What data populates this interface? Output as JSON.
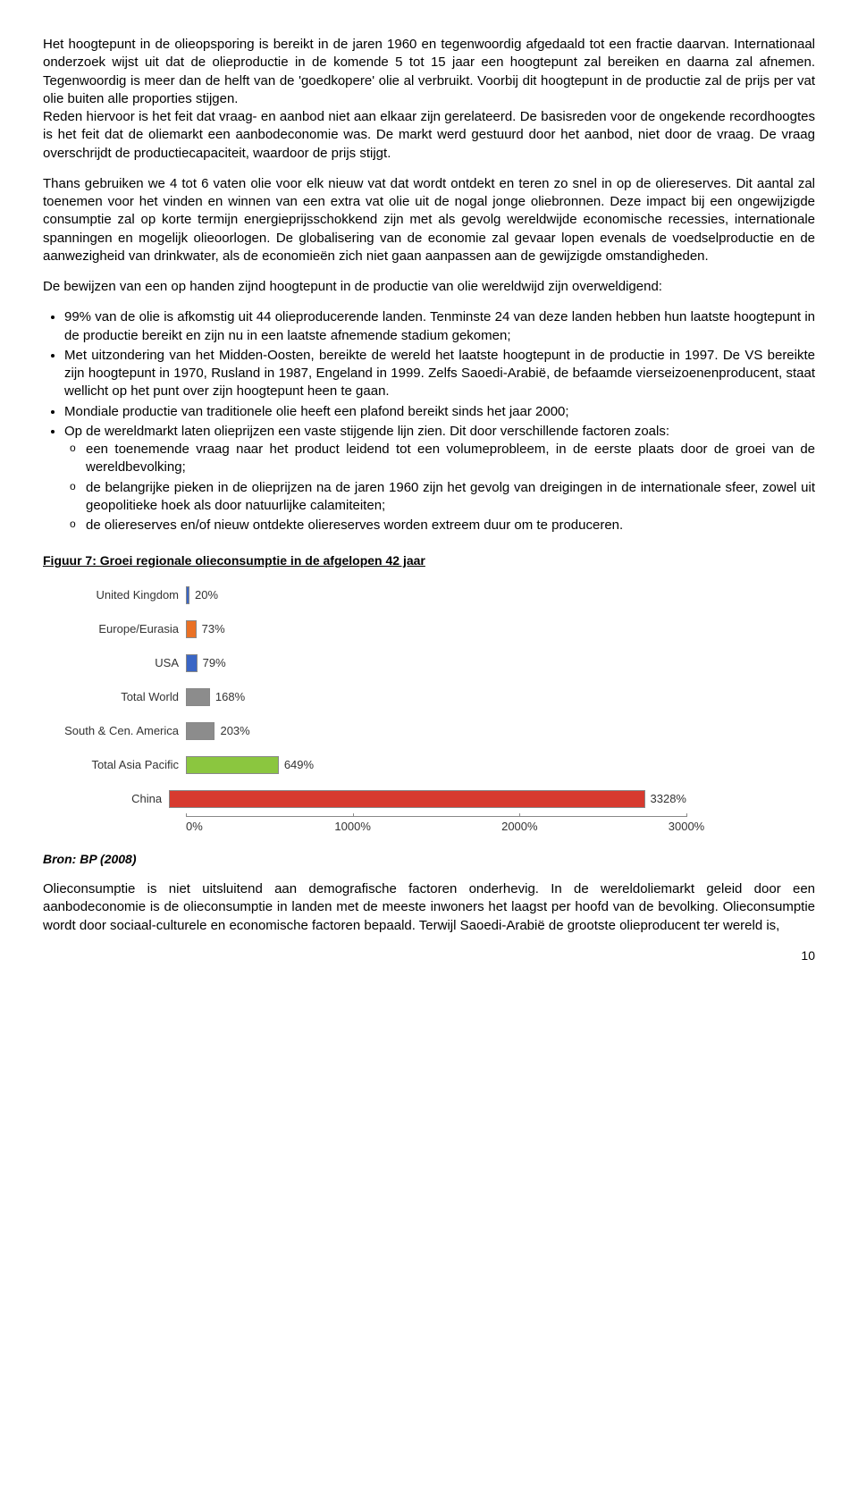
{
  "paragraphs": {
    "p1": "Het hoogtepunt in de olieopsporing is bereikt in de jaren 1960 en tegenwoordig afgedaald tot een fractie daarvan. Internationaal onderzoek wijst uit dat de olieproductie in de komende 5 tot 15 jaar een hoogtepunt zal bereiken en daarna zal afnemen. Tegenwoordig is meer dan de helft van de 'goedkopere' olie al verbruikt. Voorbij dit hoogtepunt in de productie zal de prijs per vat olie buiten alle proporties stijgen.",
    "p2": "Reden hiervoor is het feit dat vraag- en aanbod niet aan elkaar zijn gerelateerd. De basisreden voor de ongekende recordhoogtes is het feit dat de oliemarkt een aanbodeconomie was. De markt werd gestuurd door het aanbod, niet door de vraag. De vraag overschrijdt de productiecapaciteit, waardoor de prijs stijgt.",
    "p3": "Thans gebruiken we 4 tot 6 vaten olie voor elk nieuw vat dat wordt ontdekt en teren zo snel in op de oliereserves. Dit aantal zal toenemen voor het vinden en winnen van een extra vat olie uit de nogal jonge oliebronnen. Deze impact bij een ongewijzigde consumptie zal op korte termijn energieprijsschokkend zijn met als gevolg wereldwijde economische recessies, internationale spanningen en mogelijk olieoorlogen. De globalisering van de economie zal gevaar lopen evenals de voedselproductie en de aanwezigheid van drinkwater, als de economieën zich niet gaan aanpassen aan de gewijzigde omstandigheden.",
    "p4": "De bewijzen van een op handen zijnd hoogtepunt in de productie van olie wereldwijd zijn overweldigend:"
  },
  "bullets": {
    "b1": "99% van de olie is afkomstig uit 44 olieproducerende landen. Tenminste 24 van deze landen hebben hun laatste hoogtepunt in de productie bereikt en zijn nu in een laatste afnemende stadium gekomen;",
    "b2": "Met uitzondering van het Midden-Oosten, bereikte de wereld het laatste hoogtepunt in de productie in 1997. De VS bereikte zijn hoogtepunt in 1970, Rusland in 1987, Engeland in 1999. Zelfs Saoedi-Arabië, de befaamde vierseizoenenproducent, staat wellicht op het punt over zijn hoogtepunt heen te gaan.",
    "b3": "Mondiale productie van traditionele olie heeft een plafond bereikt sinds het jaar 2000;",
    "b4": "Op de wereldmarkt laten olieprijzen een vaste stijgende lijn zien. Dit door verschillende factoren zoals:",
    "b4a": "een toenemende vraag naar het product leidend tot een volumeprobleem, in de eerste plaats door de groei van de wereldbevolking;",
    "b4b": "de belangrijke pieken in de olieprijzen na de jaren 1960 zijn het gevolg van dreigingen in de internationale sfeer, zowel uit geopolitieke hoek als door natuurlijke calamiteiten;",
    "b4c": "de oliereserves en/of nieuw ontdekte oliereserves worden extreem duur om te produceren."
  },
  "figure": {
    "title": "Figuur 7: Groei regionale olieconsumptie in de afgelopen 42 jaar",
    "bron": "Bron: BP (2008)",
    "xmax": 3500,
    "ticks": [
      "0%",
      "1000%",
      "2000%",
      "3000%"
    ],
    "rows": [
      {
        "label": "United Kingdom",
        "value": 20,
        "display": "20%",
        "color": "#3a66c5"
      },
      {
        "label": "Europe/Eurasia",
        "value": 73,
        "display": "73%",
        "color": "#ea7125"
      },
      {
        "label": "USA",
        "value": 79,
        "display": "79%",
        "color": "#3a66c5"
      },
      {
        "label": "Total World",
        "value": 168,
        "display": "168%",
        "color": "#8c8c8c"
      },
      {
        "label": "South & Cen. America",
        "value": 203,
        "display": "203%",
        "color": "#8c8c8c"
      },
      {
        "label": "Total Asia Pacific",
        "value": 649,
        "display": "649%",
        "color": "#8bc63f"
      },
      {
        "label": "China",
        "value": 3328,
        "display": "3328%",
        "color": "#d73a2f"
      }
    ]
  },
  "closing": "Olieconsumptie is niet uitsluitend aan demografische factoren onderhevig. In de wereldoliemarkt geleid door een aanbodeconomie is de olieconsumptie in landen met de meeste inwoners het laagst per hoofd van de bevolking. Olieconsumptie wordt door sociaal-culturele en economische factoren bepaald. Terwijl Saoedi-Arabië de grootste olieproducent ter wereld is,",
  "pagenum": "10"
}
